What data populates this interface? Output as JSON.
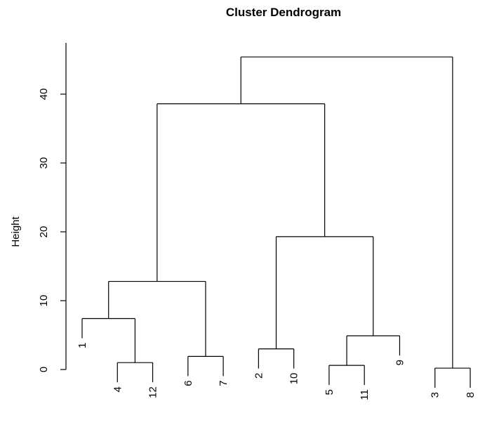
{
  "chart_data": {
    "type": "dendrogram",
    "title": "Cluster Dendrogram",
    "ylabel": "Height",
    "ylim": [
      0,
      45.4
    ],
    "yticks": [
      0,
      10,
      20,
      30,
      40
    ],
    "leaf_order": [
      "1",
      "4",
      "12",
      "6",
      "7",
      "2",
      "10",
      "5",
      "11",
      "9",
      "3",
      "8"
    ],
    "merges": [
      {
        "left": "4",
        "right": "12",
        "height": 1.0
      },
      {
        "left": "6",
        "right": "7",
        "height": 1.9
      },
      {
        "left": "2",
        "right": "10",
        "height": 3.0
      },
      {
        "left": "5",
        "right": "11",
        "height": 0.6
      },
      {
        "left": "3",
        "right": "8",
        "height": 0.2
      },
      {
        "left": "1",
        "right": "4,12",
        "height": 7.4
      },
      {
        "left": "1,4,12",
        "right": "6,7",
        "height": 12.8
      },
      {
        "left": "5,11",
        "right": "9",
        "height": 4.9
      },
      {
        "left": "2,10",
        "right": "5,11,9",
        "height": 19.3
      },
      {
        "left": "1,4,12,6,7",
        "right": "2,10,5,11,9",
        "height": 38.6
      },
      {
        "left": "1,4,12,6,7,2,10,5,11,9",
        "right": "3,8",
        "height": 45.4
      }
    ]
  }
}
